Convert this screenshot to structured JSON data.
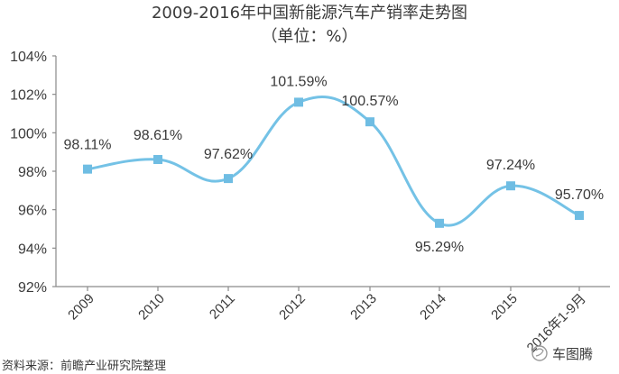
{
  "chart_data": {
    "type": "line",
    "title": "2009-2016年中国新能源汽车产销率走势图",
    "subtitle": "（单位：%）",
    "categories": [
      "2009",
      "2010",
      "2011",
      "2012",
      "2013",
      "2014",
      "2015",
      "2016年1-9月"
    ],
    "series": [
      {
        "values": [
          98.11,
          98.61,
          97.62,
          101.59,
          100.57,
          95.29,
          97.24,
          95.7
        ],
        "data_labels": [
          "98.11%",
          "98.61%",
          "97.62%",
          "101.59%",
          "100.57%",
          "95.29%",
          "97.24%",
          "95.70%"
        ]
      }
    ],
    "ylim": [
      92,
      104
    ],
    "yticks": [
      92,
      94,
      96,
      98,
      100,
      102,
      104
    ],
    "ytick_labels": [
      "92%",
      "94%",
      "96%",
      "98%",
      "100%",
      "102%",
      "104%"
    ],
    "xlabel": "",
    "ylabel": "",
    "grid": false,
    "legend": "none",
    "line_color": "#74c2e6",
    "marker_color": "#6fbde3",
    "axis_color": "#8a8a8a",
    "source_note": "资料来源：前瞻产业研究院整理",
    "watermark": "车图腾"
  }
}
